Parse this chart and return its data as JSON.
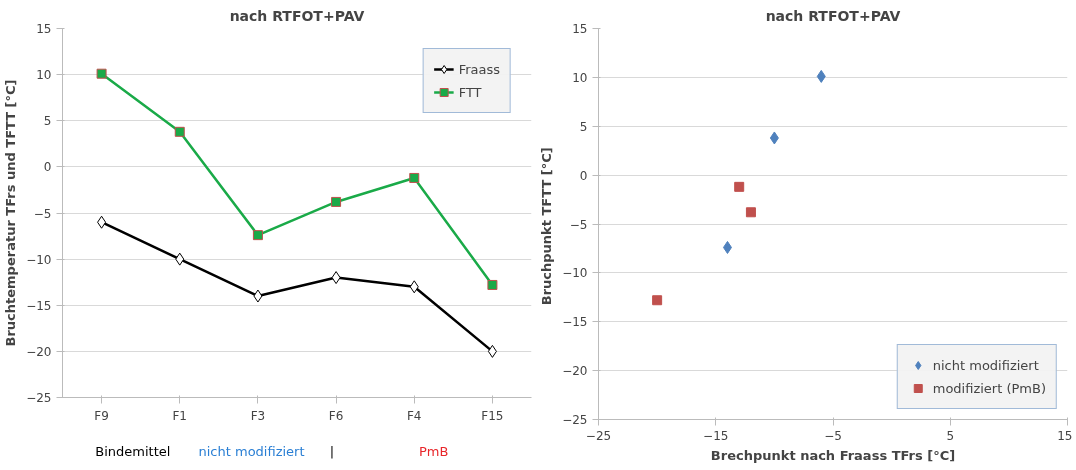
{
  "chart_data": [
    {
      "type": "line",
      "title": "nach RTFOT+PAV",
      "ylabel": "Bruchtemperatur TFrs und TFTT [°C]",
      "categories": [
        "F9",
        "F1",
        "F3",
        "F6",
        "F4",
        "F15"
      ],
      "series": [
        {
          "name": "Fraass",
          "color": "#000000",
          "marker": "diamond",
          "values": [
            -6,
            -10,
            -14,
            -12,
            -13,
            -20
          ]
        },
        {
          "name": "FTT",
          "color": "#1aaa48",
          "marker": "square",
          "values": [
            10.1,
            3.8,
            -7.4,
            -3.8,
            -1.2,
            -12.8
          ]
        }
      ],
      "ylim": [
        -25,
        15
      ],
      "yticks": [
        -25,
        -20,
        -15,
        -10,
        -5,
        0,
        5,
        10,
        15
      ],
      "grid": "y",
      "legend": "top right",
      "annotations": [
        "Bindemittel",
        "nicht modifiziert",
        "|",
        "PmB"
      ]
    },
    {
      "type": "scatter",
      "title": "nach RTFOT+PAV",
      "xlabel": "Brechpunkt nach Fraass TFrs [°C]",
      "ylabel": "Bruchpunkt TFTT  [°C]",
      "series": [
        {
          "name": "nicht modifiziert",
          "color": "#4f81bd",
          "marker": "diamond",
          "x": [
            -6,
            -10,
            -14
          ],
          "values": [
            10.1,
            3.8,
            -7.4
          ]
        },
        {
          "name": "modifiziert (PmB)",
          "color": "#c0504d",
          "marker": "square",
          "x": [
            -12,
            -13,
            -20
          ],
          "values": [
            -3.8,
            -1.2,
            -12.8
          ]
        }
      ],
      "xlim": [
        -25,
        15
      ],
      "xticks": [
        -25,
        -15,
        -5,
        5,
        15
      ],
      "ylim": [
        -25,
        15
      ],
      "yticks": [
        -25,
        -20,
        -15,
        -10,
        -5,
        0,
        5,
        10,
        15
      ],
      "grid": "y",
      "legend": "bottom right"
    }
  ]
}
